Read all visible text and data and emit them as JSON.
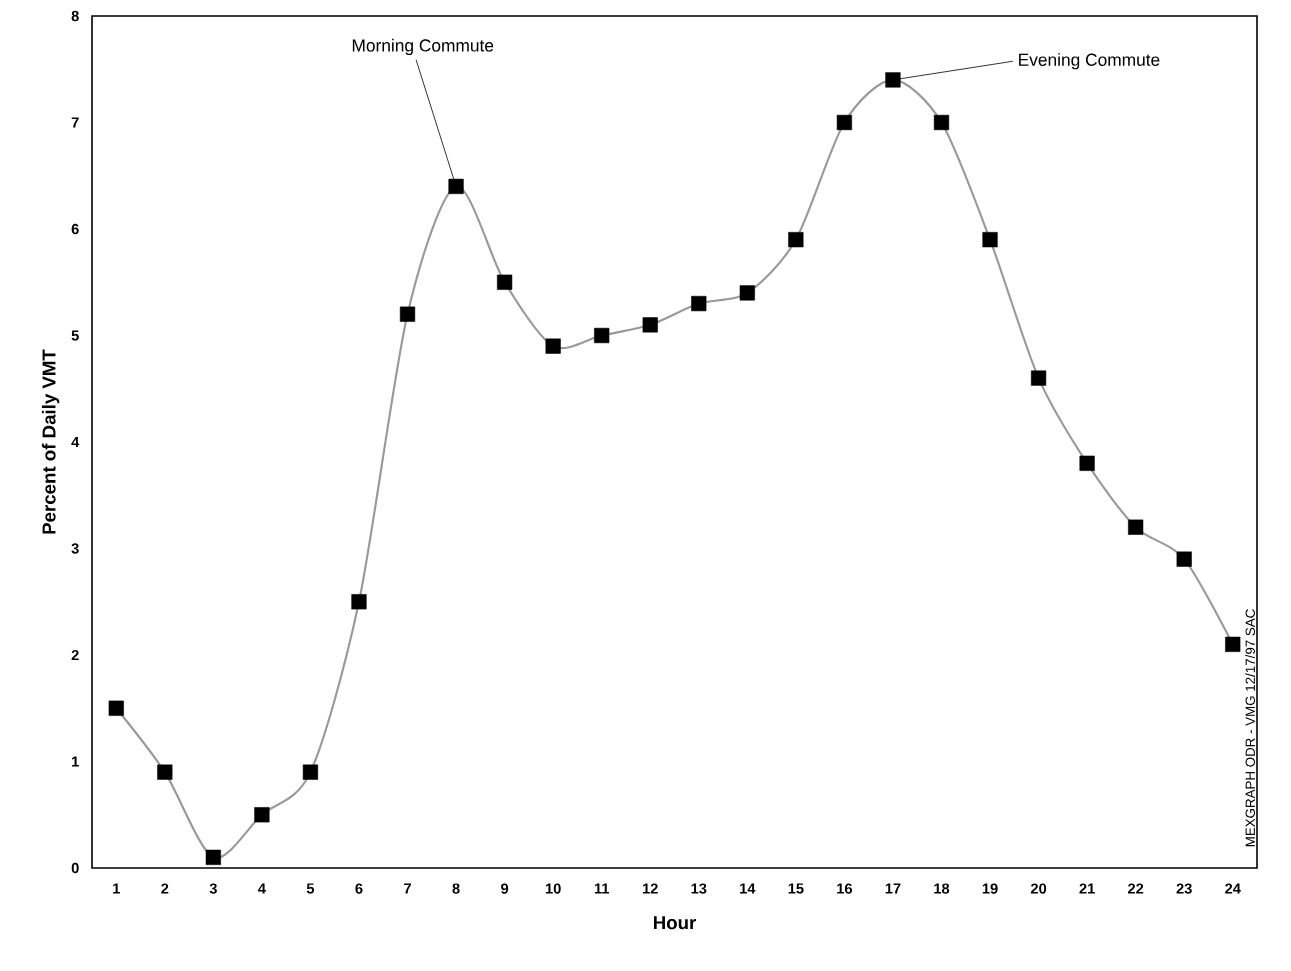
{
  "chart_data": {
    "type": "line",
    "xlabel": "Hour",
    "ylabel": "Percent of Daily VMT",
    "x": [
      1,
      2,
      3,
      4,
      5,
      6,
      7,
      8,
      9,
      10,
      11,
      12,
      13,
      14,
      15,
      16,
      17,
      18,
      19,
      20,
      21,
      22,
      23,
      24
    ],
    "series": [
      {
        "color": "#999999",
        "values": [
          1.5,
          0.9,
          0.1,
          0.5,
          0.9,
          2.5,
          5.2,
          6.4,
          5.5,
          4.9,
          5.0,
          5.1,
          5.3,
          5.4,
          5.9,
          7.0,
          7.4,
          7.0,
          5.9,
          4.6,
          3.8,
          3.2,
          2.9,
          2.1
        ]
      }
    ],
    "marker": "square",
    "line_style": "solid",
    "xlim": [
      0.5,
      24.5
    ],
    "ylim": [
      0,
      8
    ],
    "xticks": [
      1,
      2,
      3,
      4,
      5,
      6,
      7,
      8,
      9,
      10,
      11,
      12,
      13,
      14,
      15,
      16,
      17,
      18,
      19,
      20,
      21,
      22,
      23,
      24
    ],
    "yticks": [
      0,
      1,
      2,
      3,
      4,
      5,
      6,
      7,
      8
    ],
    "annotations": [
      {
        "text": "Morning Commute",
        "x": 8,
        "y": 6.4
      },
      {
        "text": "Evening Commute",
        "x": 17,
        "y": 7.4
      },
      "MEXGRAPH ODR - VMG  12/17/97 SAC"
    ]
  }
}
